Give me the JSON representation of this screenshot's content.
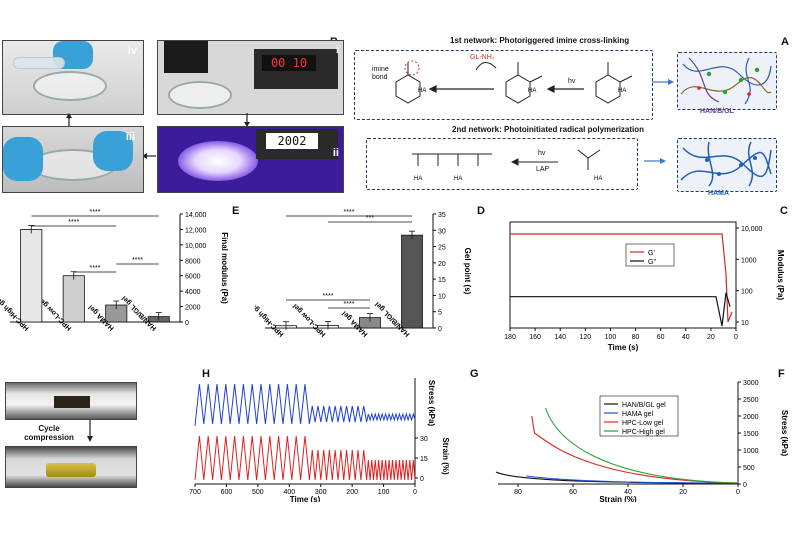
{
  "panel_labels": {
    "A": "A",
    "B": "B",
    "C": "C",
    "D": "D",
    "E": "E",
    "F": "F",
    "G": "G",
    "H": "H"
  },
  "photo_labels": {
    "i": "i",
    "ii": "ii",
    "iii": "iii",
    "iv": "iv"
  },
  "photo_i_display": "00 10",
  "photo_ii_display": "2002",
  "panel_A": {
    "title_1": "1st network: Photoriggered imine cross-linking",
    "title_2": "2nd network: Photoinitiated radical polymerization",
    "imine_bond": "imine bond",
    "nh2": "GL-NH₂",
    "hv": "hv",
    "lap": "LAP",
    "hanbgl": "HAN/B/GL",
    "hama": "HAMA",
    "ha": "HA"
  },
  "chart_data": [
    {
      "id": "C",
      "type": "line",
      "xlabel": "Time (s)",
      "ylabel": "Modulus (Pa)",
      "x_ticks": [
        "0",
        "20",
        "40",
        "60",
        "80",
        "100",
        "120",
        "140",
        "160",
        "180"
      ],
      "y_ticks": [
        "10",
        "100",
        "1000",
        "10,000"
      ],
      "legend": [
        "G'",
        "G''"
      ],
      "series": [
        {
          "name": "G'",
          "color": "#d62728"
        },
        {
          "name": "G''",
          "color": "#111111"
        }
      ]
    },
    {
      "id": "D",
      "type": "bar",
      "ylabel": "Gel point (s)",
      "categories": [
        "HAN/B/GL gel",
        "HAMA gel",
        "HPC-Low gel",
        "HPC-High gel"
      ],
      "values": [
        28.5,
        3.2,
        0.8,
        0.7
      ],
      "ylim": [
        0,
        35
      ],
      "y_ticks": [
        "0",
        "5",
        "10",
        "15",
        "20",
        "25",
        "30",
        "35"
      ],
      "colors": [
        "#555555",
        "#888888",
        "#ffffff",
        "#ffffff"
      ],
      "significance": [
        "****",
        "***",
        "****",
        "****"
      ]
    },
    {
      "id": "E",
      "type": "bar",
      "ylabel": "Final modulus (Pa)",
      "categories": [
        "HAN/B/GL gel",
        "HAMA gel",
        "HPC-Low gel",
        "HPC-High gel"
      ],
      "values": [
        700,
        2200,
        6000,
        12000
      ],
      "ylim": [
        0,
        14000
      ],
      "y_ticks": [
        "0",
        "2000",
        "4000",
        "6000",
        "8000",
        "10,000",
        "12,000",
        "14,000"
      ],
      "colors": [
        "#666666",
        "#999999",
        "#cfcfcf",
        "#e8e8e8"
      ],
      "significance": [
        "****",
        "****",
        "****",
        "****"
      ]
    },
    {
      "id": "F",
      "type": "line",
      "xlabel": "Strain (%)",
      "ylabel": "Stress (kPa)",
      "x_ticks": [
        "0",
        "20",
        "40",
        "60",
        "80"
      ],
      "y_ticks": [
        "0",
        "500",
        "1000",
        "1500",
        "2000",
        "2500",
        "3000"
      ],
      "legend": [
        "HAN/B/GL gel",
        "HAMA gel",
        "HPC-Low gel",
        "HPC-High gel"
      ],
      "colors": [
        "#111111",
        "#1f4fd6",
        "#d62728",
        "#2ca02c"
      ]
    },
    {
      "id": "G",
      "type": "line",
      "xlabel": "Time (s)",
      "ylabel_top": "Stress (kPa)",
      "ylabel_bottom": "Strain (%)",
      "x_ticks": [
        "0",
        "100",
        "200",
        "300",
        "400",
        "500",
        "600",
        "700"
      ],
      "y_ticks_bottom": [
        "0",
        "15",
        "30"
      ]
    }
  ],
  "panel_H": {
    "caption": "Cycle compression"
  }
}
